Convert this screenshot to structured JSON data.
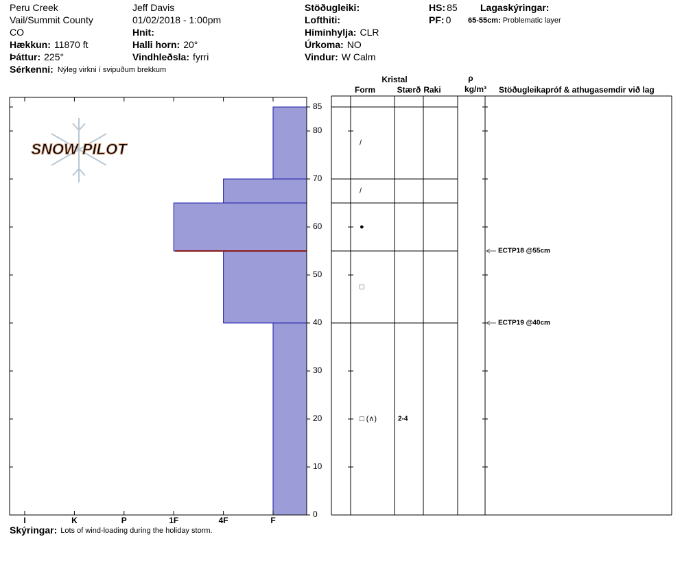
{
  "header": {
    "columns": [
      [
        {
          "value": "Peru Creek"
        },
        {
          "value": "Vail/Summit County"
        },
        {
          "value": "CO"
        },
        {
          "label": "Hækkun:",
          "value": "11870 ft"
        },
        {
          "label": "Þáttur:",
          "value": "225°"
        }
      ],
      [
        {
          "value": "Jeff Davis"
        },
        {
          "value": "01/02/2018 - 1:00pm"
        },
        {
          "label": "Hnit:"
        },
        {
          "label": "Halli horn:",
          "value": "20°"
        },
        {
          "label": "Vindhleðsla:",
          "value": "fyrri"
        }
      ],
      [
        {
          "label": "Stöðugleiki:"
        },
        {
          "label": "Lofthiti:"
        },
        {
          "label": "Himinhylja:",
          "value": "CLR"
        },
        {
          "label": "Úrkoma:",
          "value": "NO"
        },
        {
          "label": "Vindur:",
          "value": "W Calm"
        }
      ],
      [
        {
          "label": "HS:",
          "value": 85
        },
        {
          "label": "PF:",
          "value": 0
        }
      ],
      [
        {
          "label": "Lagaskýringar:"
        }
      ]
    ],
    "layer_note": {
      "label": "65-55cm:",
      "value": "Problematic layer"
    },
    "features": {
      "label": "Sérkenni:",
      "value": "Nýleg virkni í svipuðum brekkum"
    }
  },
  "logo": "SNOW PILOT",
  "chart_data": {
    "type": "snow-profile",
    "ylim": [
      0,
      87
    ],
    "yticks": [
      0,
      10,
      20,
      30,
      40,
      50,
      60,
      70,
      80,
      85
    ],
    "hardness_categories": [
      "I",
      "K",
      "P",
      "1F",
      "4F",
      "F"
    ],
    "bar_color": "#9c9cd8",
    "layers": [
      {
        "top": 85,
        "bottom": 70,
        "hardness": "F",
        "form": "/"
      },
      {
        "top": 70,
        "bottom": 65,
        "hardness": "4F",
        "form": "/"
      },
      {
        "top": 65,
        "bottom": 55,
        "hardness": "1F",
        "form": "●"
      },
      {
        "top": 55,
        "bottom": 40,
        "hardness": "4F",
        "form": "□"
      },
      {
        "top": 40,
        "bottom": 0,
        "hardness": "F",
        "form": "□ (∧)",
        "size": "2-4"
      }
    ],
    "problem_boundary": {
      "depth": 55,
      "color": "#8b1a1a"
    },
    "table_headers": {
      "crystal": "Kristal",
      "form": "Form",
      "size": "Stærð",
      "moisture": "Raki",
      "density_symbol": "ρ",
      "density_unit": "kg/m³",
      "tests": "Stöðugleikapróf & athugasemdir við lag"
    },
    "tests": [
      {
        "label": "ECTP18 @55cm",
        "depth": 55
      },
      {
        "label": "ECTP19 @40cm",
        "depth": 40
      }
    ]
  },
  "notes": {
    "label": "Skýringar:",
    "value": "Lots of wind-loading during the holiday storm."
  }
}
